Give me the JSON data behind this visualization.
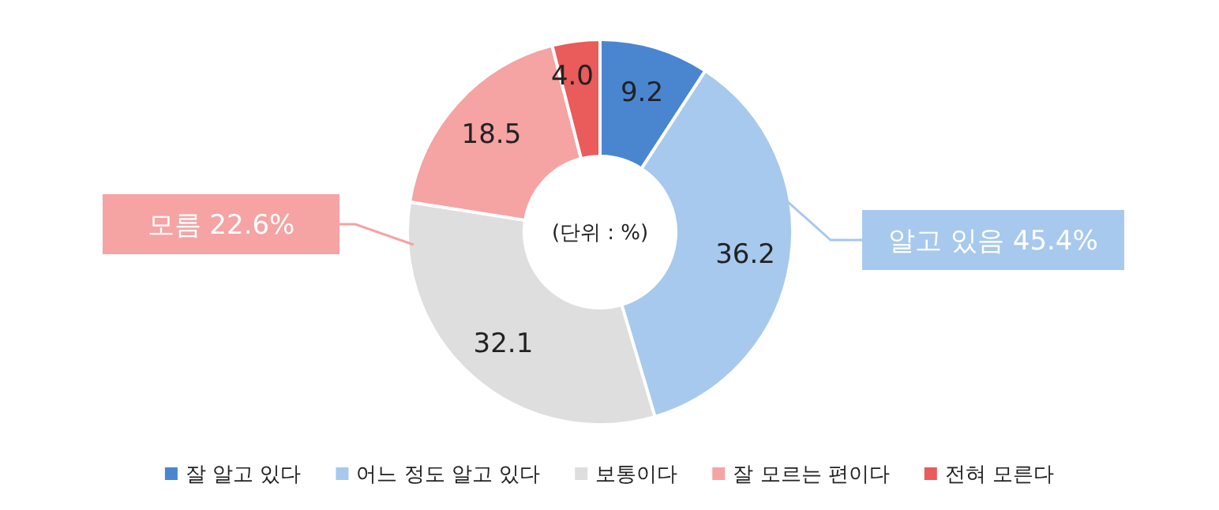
{
  "chart_data": {
    "type": "donut",
    "categories": [
      "잘 알고 있다",
      "어느 정도 알고 있다",
      "보통이다",
      "잘 모르는 편이다",
      "전혀 모른다"
    ],
    "values": [
      9.2,
      36.2,
      32.1,
      18.5,
      4.0
    ],
    "value_labels": [
      "9.2",
      "36.2",
      "32.1",
      "18.5",
      "4.0"
    ],
    "colors": [
      "#4a86d0",
      "#a7c9ee",
      "#dedede",
      "#f5a3a3",
      "#ea5b5b"
    ],
    "annotations": [
      "(단위 : %)",
      "알고 있음 45.4%",
      "모름 22.6%"
    ],
    "legend": "bottom"
  }
}
